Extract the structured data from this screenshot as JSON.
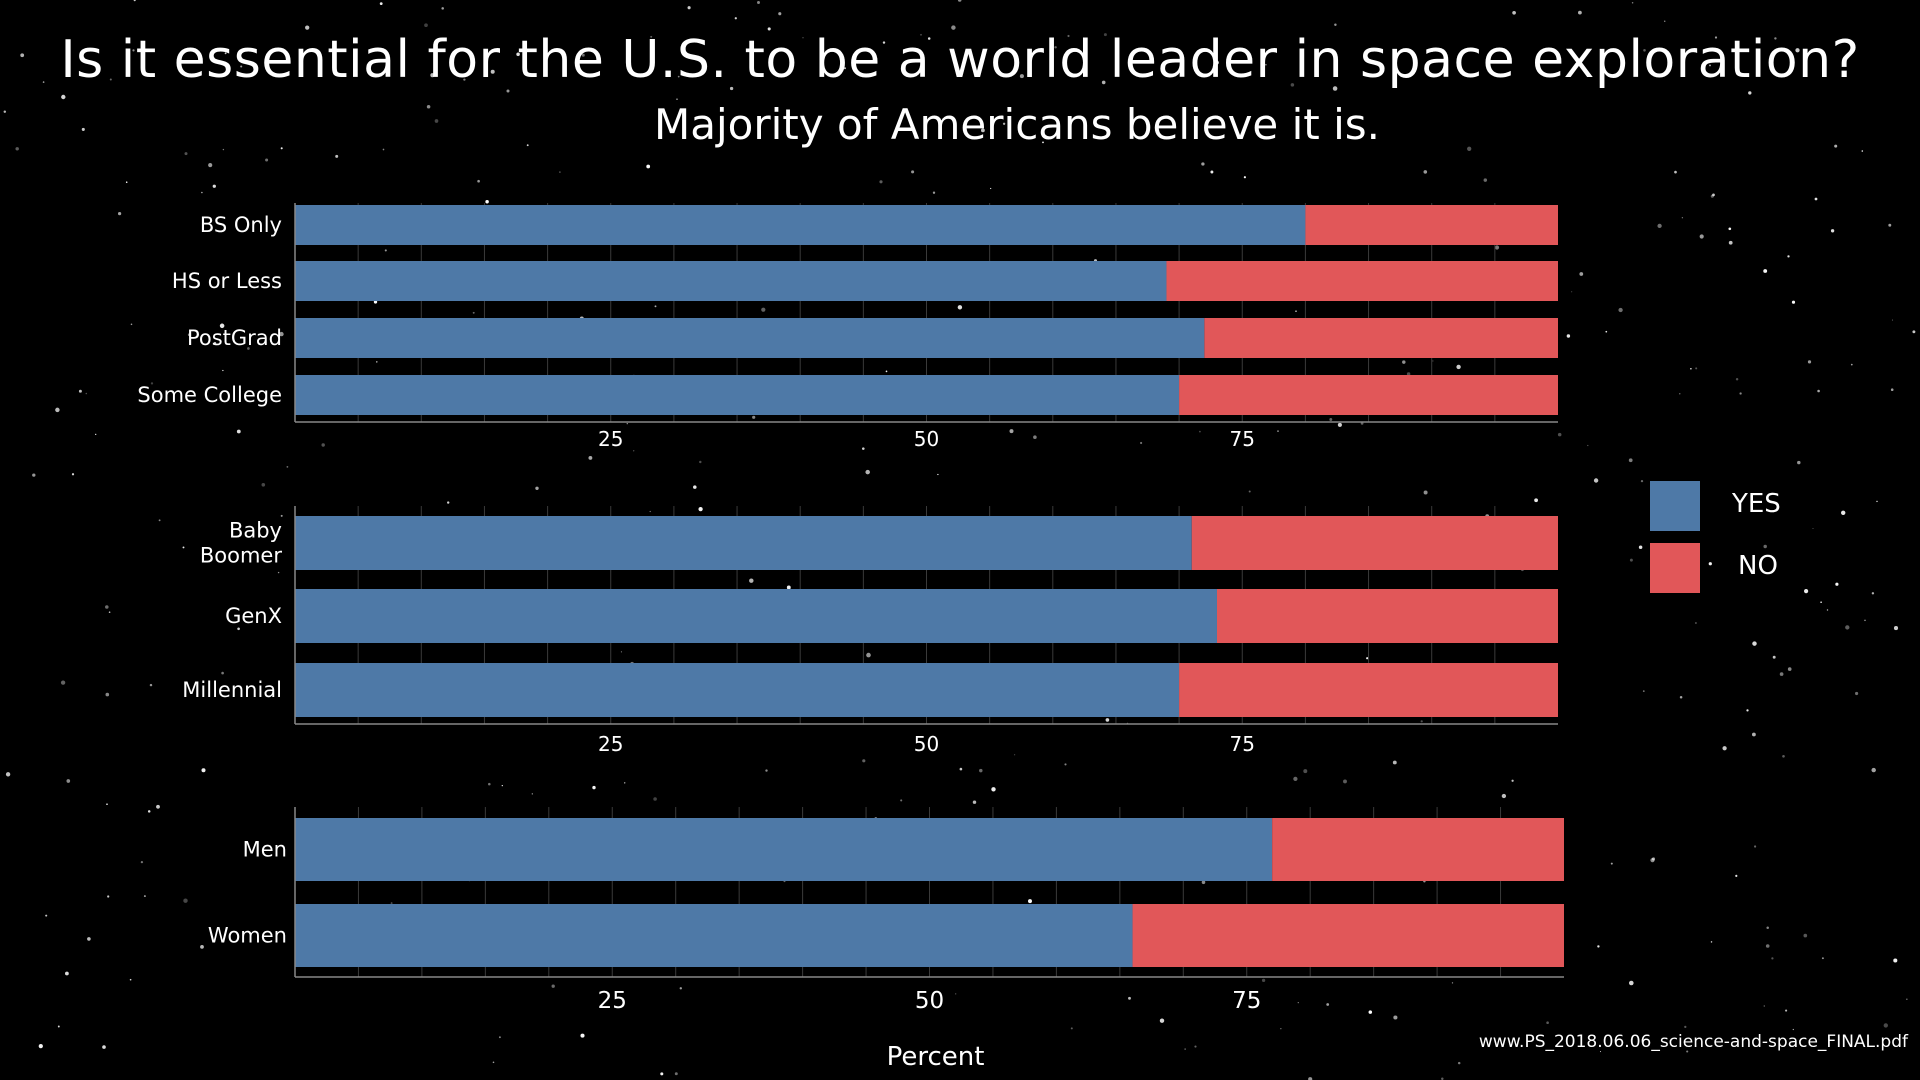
{
  "title": "Is it essential for the U.S. to be a world leader in space exploration?",
  "subtitle": "Majority of Americans believe it is.",
  "source": "www.PS_2018.06.06_science-and-space_FINAL.pdf",
  "legend": [
    {
      "label": "YES",
      "color": "#4e79a7"
    },
    {
      "label": "NO",
      "color": "#e15759"
    }
  ],
  "chart_data": [
    {
      "type": "bar",
      "orientation": "horizontal",
      "stacked": true,
      "categories": [
        "BS Only",
        "HS or Less",
        "PostGrad",
        "Some College"
      ],
      "series": [
        {
          "name": "YES",
          "values": [
            80,
            69,
            72,
            70
          ]
        },
        {
          "name": "NO",
          "values": [
            20,
            31,
            28,
            30
          ]
        }
      ],
      "xlim": [
        0,
        100
      ],
      "xticks": [
        "25",
        "50",
        "75"
      ]
    },
    {
      "type": "bar",
      "orientation": "horizontal",
      "stacked": true,
      "categories": [
        "Baby Boomer",
        "GenX",
        "Millennial"
      ],
      "series": [
        {
          "name": "YES",
          "values": [
            71,
            73,
            70
          ]
        },
        {
          "name": "NO",
          "values": [
            29,
            27,
            30
          ]
        }
      ],
      "xlim": [
        0,
        100
      ],
      "xticks": [
        "25",
        "50",
        "75"
      ]
    },
    {
      "type": "bar",
      "orientation": "horizontal",
      "stacked": true,
      "categories": [
        "Men",
        "Women"
      ],
      "series": [
        {
          "name": "YES",
          "values": [
            77,
            66
          ]
        },
        {
          "name": "NO",
          "values": [
            23,
            34
          ]
        }
      ],
      "xlim": [
        0,
        100
      ],
      "xticks": [
        "25",
        "50",
        "75"
      ],
      "xlabel": "Percent"
    }
  ]
}
